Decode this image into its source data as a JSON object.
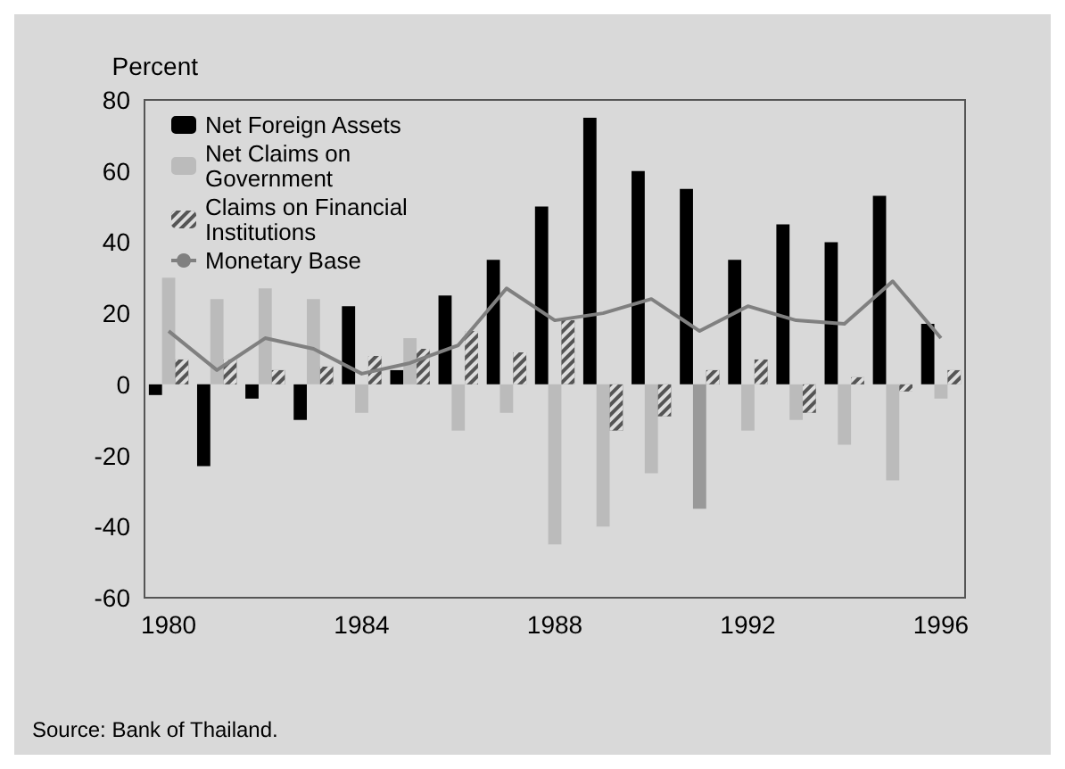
{
  "chart_data": {
    "type": "bar",
    "ylabel": "Percent",
    "categories": [
      "1980",
      null,
      null,
      null,
      "1984",
      null,
      null,
      null,
      "1988",
      null,
      null,
      null,
      "1992",
      null,
      null,
      null,
      "1996"
    ],
    "series": [
      {
        "name": "Net Foreign Assets",
        "color": "#000000",
        "values": [
          -3,
          -23,
          -4,
          -10,
          22,
          4,
          25,
          35,
          50,
          75,
          60,
          55,
          35,
          45,
          40,
          53,
          17
        ]
      },
      {
        "name": "Net Claims on Government",
        "color": "#bbbbbb",
        "colors": [
          "#bbbbbb",
          "#bbbbbb",
          "#bbbbbb",
          "#bbbbbb",
          "#bbbbbb",
          "#bbbbbb",
          "#bbbbbb",
          "#bbbbbb",
          "#bbbbbb",
          "#bbbbbb",
          "#bbbbbb",
          "#999999",
          "#bbbbbb",
          "#bbbbbb",
          "#bbbbbb",
          "#bbbbbb",
          "#bbbbbb"
        ],
        "values": [
          30,
          24,
          27,
          24,
          -8,
          13,
          -13,
          -8,
          -45,
          -40,
          -25,
          -35,
          -13,
          -10,
          -17,
          -27,
          -4
        ]
      },
      {
        "name": "Claims on Financial Institutions",
        "color": "#555555",
        "values": [
          7,
          7,
          4,
          5,
          8,
          10,
          15,
          9,
          18,
          -13,
          -9,
          4,
          7,
          -8,
          2,
          -2,
          4
        ]
      },
      {
        "name": "Monetary Base",
        "type": "line",
        "color": "#808080",
        "values": [
          15,
          4,
          13,
          10,
          3,
          6,
          11,
          27,
          18,
          20,
          24,
          15,
          22,
          18,
          17,
          29,
          13
        ]
      }
    ],
    "ylim": [
      -60,
      80
    ],
    "yticks": [
      -60,
      -40,
      -20,
      0,
      20,
      40,
      60,
      80
    ],
    "legend": "top left",
    "marker": "none",
    "annotations": [
      "Source: Bank of Thailand."
    ]
  }
}
